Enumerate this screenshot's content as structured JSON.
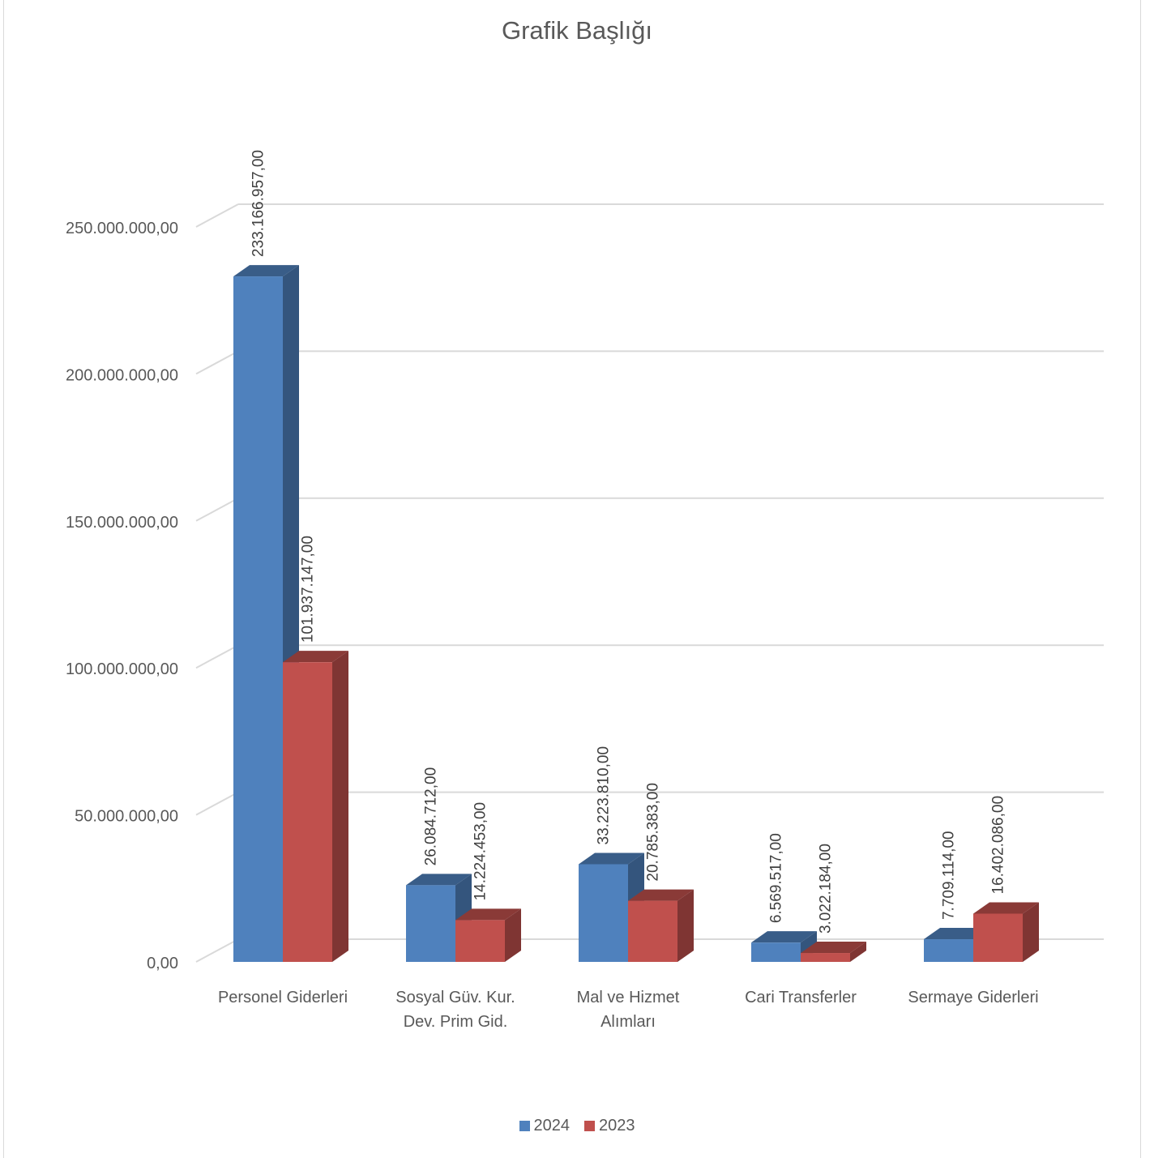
{
  "chart_data": {
    "type": "bar",
    "title": "Grafik Başlığı",
    "categories": [
      [
        "Personel Giderleri"
      ],
      [
        "Sosyal Güv. Kur.",
        "Dev. Prim Gid."
      ],
      [
        "Mal ve Hizmet",
        "Alımları"
      ],
      [
        "Cari Transferler"
      ],
      [
        "Sermaye Giderleri"
      ]
    ],
    "series": [
      {
        "name": "2024",
        "color": "#4F81BD",
        "values": [
          233166957,
          26084712,
          33223810,
          6569517,
          7709114
        ],
        "labels": [
          "233.166.957,00",
          "26.084.712,00",
          "33.223.810,00",
          "6.569.517,00",
          "7.709.114,00"
        ]
      },
      {
        "name": "2023",
        "color": "#C0504D",
        "values": [
          101937147,
          14224453,
          20785383,
          3022184,
          16402086
        ],
        "labels": [
          "101.937.147,00",
          "14.224.453,00",
          "20.785.383,00",
          "3.022.184,00",
          "16.402.086,00"
        ]
      }
    ],
    "ylim": [
      0,
      250000000
    ],
    "yticks": [
      0,
      50000000,
      100000000,
      150000000,
      200000000,
      250000000
    ],
    "ytick_labels": [
      "0,00",
      "50.000.000,00",
      "100.000.000,00",
      "150.000.000,00",
      "200.000.000,00",
      "250.000.000,00"
    ],
    "grid": true,
    "legend": "bottom"
  }
}
